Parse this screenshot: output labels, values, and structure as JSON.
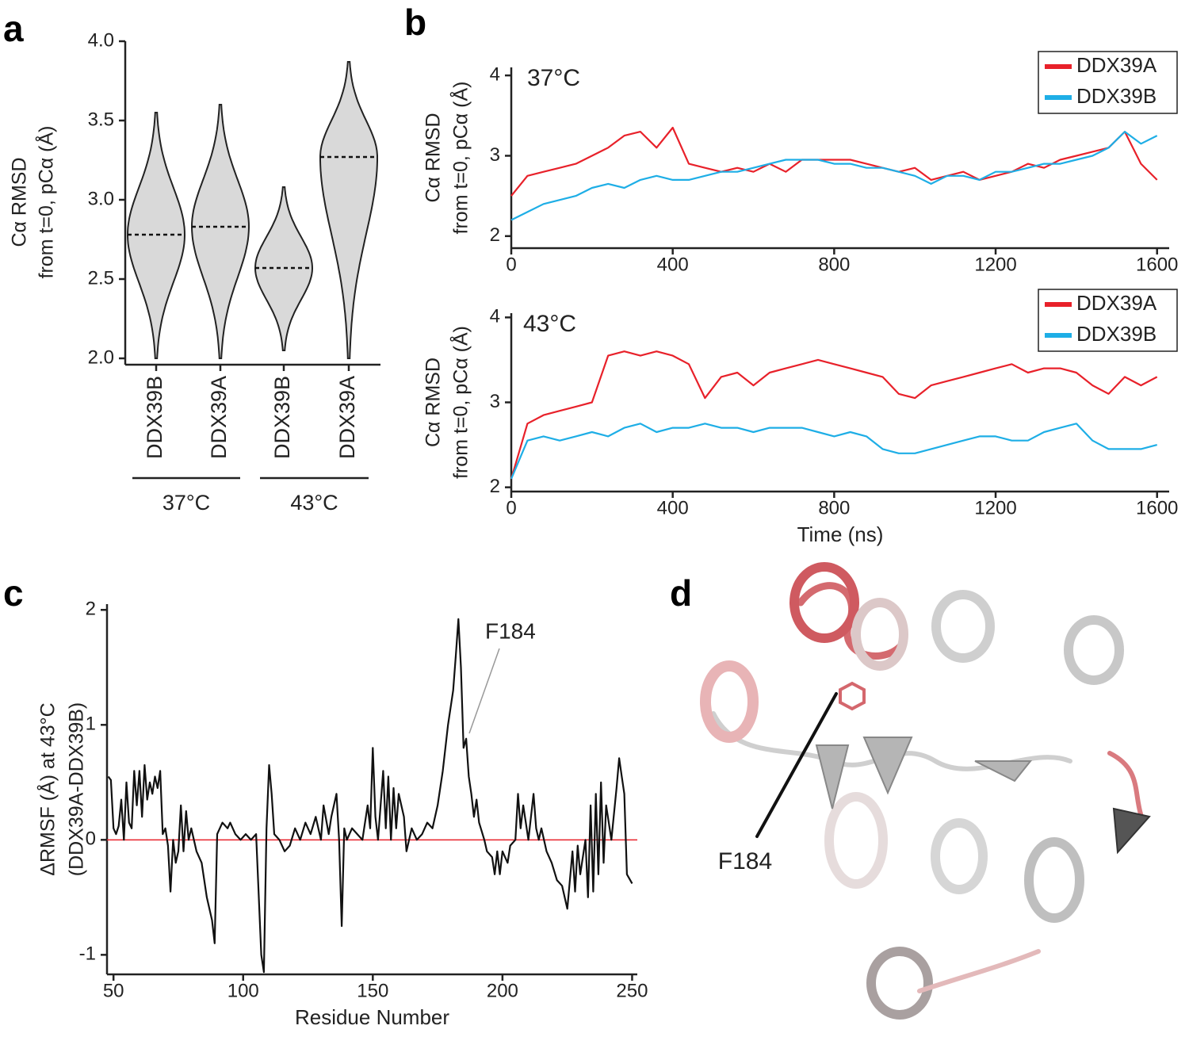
{
  "chart_data": [
    {
      "type": "violin",
      "panel_label": "a",
      "ylabel": [
        "Cα RMSD",
        "from t=0, pCα (Å)"
      ],
      "categories": [
        "DDX39B",
        "DDX39A",
        "DDX39B",
        "DDX39A"
      ],
      "groups": [
        "37°C",
        "43°C"
      ],
      "median": [
        2.78,
        2.83,
        2.57,
        3.27
      ],
      "min": [
        2.0,
        2.0,
        2.05,
        2.0
      ],
      "max": [
        3.55,
        3.6,
        3.08,
        3.87
      ],
      "color": "#d9d9d9",
      "ylim": [
        1.96,
        4.0
      ],
      "yticks": [
        {
          "value": 2,
          "label": "2.0"
        },
        2.5,
        {
          "value": 3,
          "label": "3.0"
        },
        3.5,
        {
          "value": 4,
          "label": "4.0"
        }
      ]
    },
    {
      "type": "line",
      "panel_label": "b",
      "annotation": "37°C",
      "ylabel": [
        "Cα RMSD",
        "from t=0, pCα (Å)"
      ],
      "x": [
        0,
        40,
        80,
        120,
        160,
        200,
        240,
        280,
        320,
        360,
        400,
        440,
        480,
        520,
        560,
        600,
        640,
        680,
        720,
        760,
        800,
        840,
        880,
        920,
        960,
        1000,
        1040,
        1080,
        1120,
        1160,
        1200,
        1240,
        1280,
        1320,
        1360,
        1400,
        1440,
        1480,
        1520,
        1560,
        1600
      ],
      "series": [
        {
          "name": "DDX39A",
          "color": "#e8212a",
          "values": [
            2.5,
            2.75,
            2.8,
            2.85,
            2.9,
            3.0,
            3.1,
            3.25,
            3.3,
            3.1,
            3.35,
            2.9,
            2.85,
            2.8,
            2.85,
            2.8,
            2.9,
            2.8,
            2.95,
            2.95,
            2.95,
            2.95,
            2.9,
            2.85,
            2.8,
            2.85,
            2.7,
            2.75,
            2.8,
            2.7,
            2.75,
            2.8,
            2.9,
            2.85,
            2.95,
            3.0,
            3.05,
            3.1,
            3.3,
            2.9,
            2.7
          ]
        },
        {
          "name": "DDX39B",
          "color": "#1eaee6",
          "values": [
            2.2,
            2.3,
            2.4,
            2.45,
            2.5,
            2.6,
            2.65,
            2.6,
            2.7,
            2.75,
            2.7,
            2.7,
            2.75,
            2.8,
            2.8,
            2.85,
            2.9,
            2.95,
            2.95,
            2.95,
            2.9,
            2.9,
            2.85,
            2.85,
            2.8,
            2.75,
            2.65,
            2.75,
            2.75,
            2.7,
            2.8,
            2.8,
            2.85,
            2.9,
            2.9,
            2.95,
            3.0,
            3.1,
            3.3,
            3.15,
            3.25
          ]
        }
      ],
      "xlim": [
        0,
        1630
      ],
      "xticks": [
        0,
        400,
        800,
        1200,
        1600
      ],
      "ylim": [
        1.85,
        4.1
      ],
      "yticks": [
        2,
        3,
        4
      ],
      "legend": "top-right"
    },
    {
      "type": "line",
      "annotation": "43°C",
      "xlabel": "Time (ns)",
      "ylabel": [
        "Cα RMSD",
        "from t=0, pCα (Å)"
      ],
      "x": [
        0,
        40,
        80,
        120,
        160,
        200,
        240,
        280,
        320,
        360,
        400,
        440,
        480,
        520,
        560,
        600,
        640,
        680,
        720,
        760,
        800,
        840,
        880,
        920,
        960,
        1000,
        1040,
        1080,
        1120,
        1160,
        1200,
        1240,
        1280,
        1320,
        1360,
        1400,
        1440,
        1480,
        1520,
        1560,
        1600
      ],
      "series": [
        {
          "name": "DDX39A",
          "color": "#e8212a",
          "values": [
            2.1,
            2.75,
            2.85,
            2.9,
            2.95,
            3.0,
            3.55,
            3.6,
            3.55,
            3.6,
            3.55,
            3.45,
            3.05,
            3.3,
            3.35,
            3.2,
            3.35,
            3.4,
            3.45,
            3.5,
            3.45,
            3.4,
            3.35,
            3.3,
            3.1,
            3.05,
            3.2,
            3.25,
            3.3,
            3.35,
            3.4,
            3.45,
            3.35,
            3.4,
            3.4,
            3.35,
            3.2,
            3.1,
            3.3,
            3.2,
            3.3
          ]
        },
        {
          "name": "DDX39B",
          "color": "#1eaee6",
          "values": [
            2.1,
            2.55,
            2.6,
            2.55,
            2.6,
            2.65,
            2.6,
            2.7,
            2.75,
            2.65,
            2.7,
            2.7,
            2.75,
            2.7,
            2.7,
            2.65,
            2.7,
            2.7,
            2.7,
            2.65,
            2.6,
            2.65,
            2.6,
            2.45,
            2.4,
            2.4,
            2.45,
            2.5,
            2.55,
            2.6,
            2.6,
            2.55,
            2.55,
            2.65,
            2.7,
            2.75,
            2.55,
            2.45,
            2.45,
            2.45,
            2.5
          ]
        }
      ],
      "xlim": [
        0,
        1630
      ],
      "xticks": [
        0,
        400,
        800,
        1200,
        1600
      ],
      "ylim": [
        1.95,
        4.05
      ],
      "yticks": [
        2,
        3,
        4
      ],
      "legend": "top-right"
    },
    {
      "type": "line",
      "panel_label": "c",
      "xlabel": "Residue Number",
      "ylabel": [
        "ΔRMSF (Å) at 43°C",
        "(DDX39A-DDX39B)"
      ],
      "annotation": "F184",
      "x": [
        48,
        49,
        50,
        51,
        52,
        53,
        54,
        55,
        56,
        57,
        58,
        59,
        60,
        61,
        62,
        63,
        64,
        65,
        66,
        67,
        68,
        69,
        70,
        71,
        72,
        73,
        74,
        75,
        76,
        77,
        78,
        79,
        80,
        82,
        84,
        86,
        88,
        89,
        90,
        91,
        92,
        94,
        95,
        97,
        99,
        101,
        103,
        105,
        107,
        108,
        109,
        110,
        111,
        112,
        114,
        116,
        118,
        120,
        122,
        124,
        126,
        128,
        130,
        131,
        133,
        134,
        136,
        137,
        138,
        139,
        140,
        142,
        144,
        146,
        148,
        149,
        150,
        151,
        152,
        154,
        155,
        156,
        157,
        158,
        159,
        160,
        162,
        163,
        165,
        167,
        169,
        171,
        173,
        175,
        177,
        179,
        181,
        182,
        183,
        184,
        185,
        186,
        187,
        188,
        189,
        190,
        191,
        193,
        194,
        196,
        197,
        198,
        199,
        200,
        202,
        203,
        205,
        206,
        207,
        208,
        210,
        212,
        213,
        214,
        215,
        217,
        219,
        221,
        223,
        225,
        227,
        228,
        229,
        230,
        232,
        233,
        234,
        235,
        236,
        237,
        238,
        239,
        240,
        242,
        244,
        245,
        246,
        247,
        248,
        250
      ],
      "series": [
        {
          "name": null,
          "color": "#111111",
          "values": [
            0.55,
            0.52,
            0.1,
            0.05,
            0.12,
            0.35,
            0.0,
            0.5,
            0.15,
            0.1,
            0.6,
            0.3,
            0.6,
            0.2,
            0.65,
            0.35,
            0.5,
            0.4,
            0.55,
            0.45,
            0.6,
            0.05,
            0.1,
            -0.05,
            -0.45,
            0.0,
            -0.2,
            -0.1,
            0.3,
            -0.1,
            0.25,
            0.0,
            0.1,
            -0.1,
            -0.2,
            -0.5,
            -0.7,
            -0.9,
            0.05,
            0.1,
            0.15,
            0.1,
            0.15,
            0.05,
            0.0,
            0.05,
            0.0,
            0.05,
            -1.0,
            -1.15,
            0.1,
            0.65,
            0.4,
            0.05,
            0.0,
            -0.1,
            -0.05,
            0.1,
            0.0,
            0.15,
            0.05,
            0.2,
            0.0,
            0.3,
            0.05,
            0.2,
            0.4,
            0.0,
            -0.75,
            0.1,
            0.0,
            0.1,
            0.05,
            0.0,
            0.3,
            0.1,
            0.8,
            0.2,
            0.0,
            0.6,
            0.1,
            0.55,
            0.0,
            0.45,
            0.1,
            0.4,
            0.2,
            -0.1,
            0.1,
            0.0,
            0.05,
            0.15,
            0.1,
            0.3,
            0.6,
            1.0,
            1.3,
            1.6,
            1.92,
            1.5,
            0.8,
            0.88,
            0.55,
            0.4,
            0.2,
            0.35,
            0.15,
            0.0,
            -0.1,
            -0.15,
            -0.3,
            -0.1,
            -0.3,
            -0.1,
            -0.2,
            -0.05,
            0.0,
            0.4,
            0.1,
            0.3,
            0.0,
            0.4,
            0.1,
            0.0,
            0.1,
            -0.1,
            -0.2,
            -0.35,
            -0.4,
            -0.6,
            -0.1,
            -0.45,
            -0.05,
            -0.3,
            0.0,
            -0.5,
            0.3,
            -0.45,
            0.4,
            -0.3,
            0.5,
            -0.2,
            0.3,
            0.0,
            0.45,
            0.71,
            0.55,
            0.4,
            -0.3,
            -0.38
          ]
        }
      ],
      "hline": {
        "value": 0,
        "color": "#e8212a"
      },
      "xlim": [
        47.5,
        252
      ],
      "xticks": [
        50,
        100,
        150,
        200,
        250
      ],
      "ylim": [
        -1.17,
        2.05
      ],
      "yticks": [
        -1,
        0,
        1,
        2
      ]
    }
  ],
  "panel_d": {
    "label": "d",
    "annotation": "F184"
  }
}
